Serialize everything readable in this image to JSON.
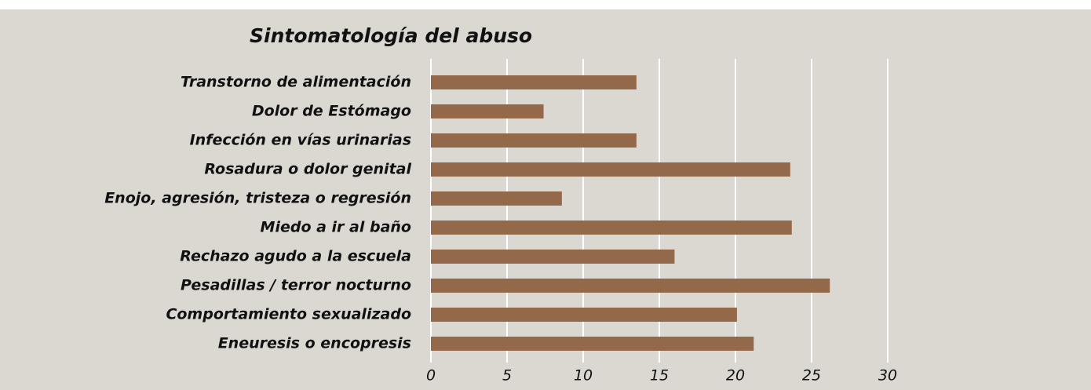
{
  "chart_data": {
    "type": "hbar",
    "title": "Sintomatología del abuso",
    "categories": [
      "Transtorno de alimentación",
      "Dolor de Estómago",
      "Infección en vías urinarias",
      "Rosadura o dolor genital",
      "Enojo, agresión, tristeza o regresión",
      "Miedo a ir al baño",
      "Rechazo agudo a la escuela",
      "Pesadillas / terror nocturno",
      "Comportamiento sexualizado",
      "Eneuresis o encopresis"
    ],
    "values": [
      13.5,
      7.4,
      13.5,
      23.6,
      8.6,
      23.7,
      16.0,
      26.2,
      20.1,
      21.2
    ],
    "color": "#94694a",
    "xlim": [
      0,
      30
    ],
    "xticks": [
      0,
      5,
      10,
      15,
      20,
      25,
      30
    ],
    "grid": true
  }
}
